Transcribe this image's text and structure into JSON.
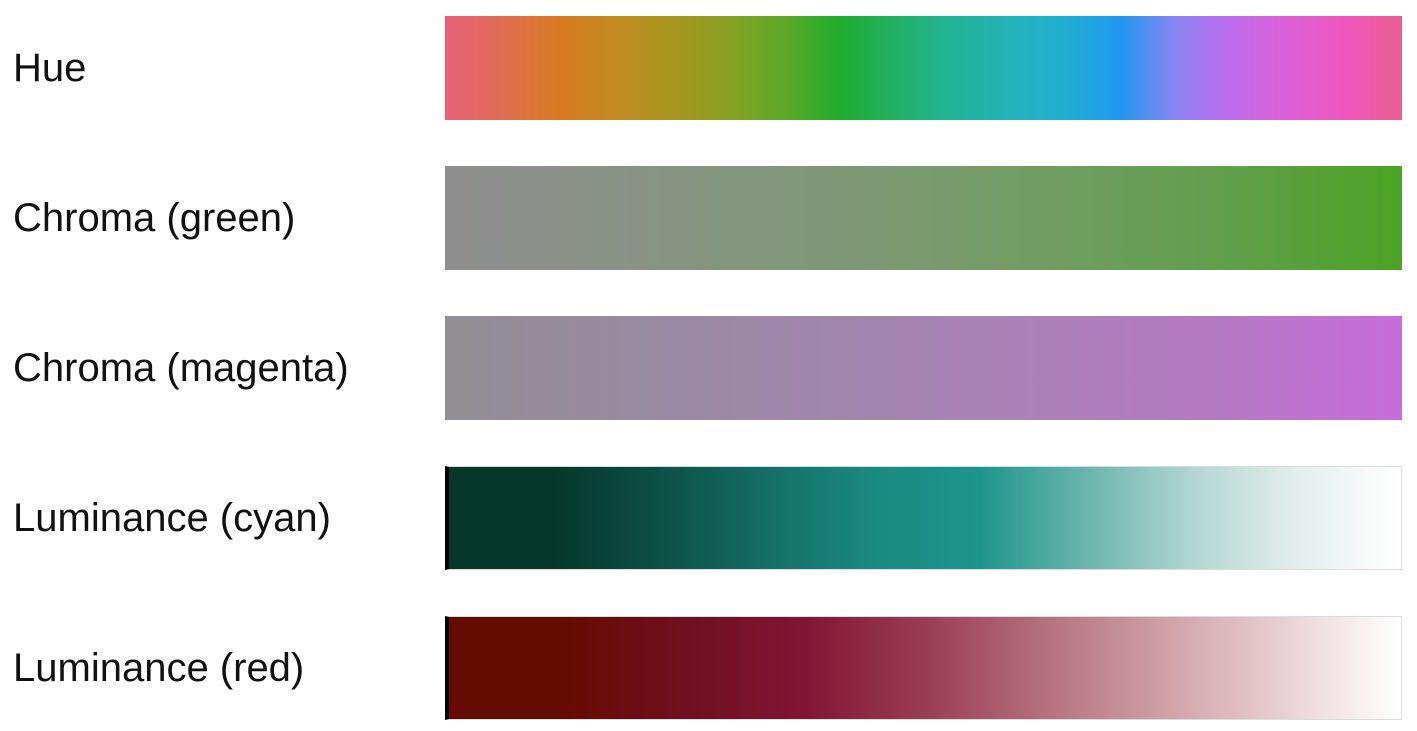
{
  "rows": [
    {
      "label": "Hue",
      "name": "hue",
      "stops": [
        "#e8617a",
        "#e06d55",
        "#d97a22",
        "#c38a20",
        "#a8961f",
        "#8aa022",
        "#5fa828",
        "#20ad2c",
        "#22b065",
        "#21b495",
        "#22b2b8",
        "#20aed0",
        "#2098f0",
        "#8b84f3",
        "#c06ded",
        "#dc5fd6",
        "#ee56bd",
        "#ea5f8d"
      ],
      "bordered": false
    },
    {
      "label": "Chroma (green)",
      "name": "chroma-green",
      "stops": [
        "#8e8e8e",
        "#8a9287",
        "#83977c",
        "#7a9a70",
        "#6e9d5e",
        "#5f9f48",
        "#4ca324"
      ],
      "bordered": false
    },
    {
      "label": "Chroma (magenta)",
      "name": "chroma-magenta",
      "stops": [
        "#908e92",
        "#988aa0",
        "#a186ad",
        "#ab82b7",
        "#b57ac3",
        "#c86cdc"
      ],
      "bordered": false
    },
    {
      "label": "Luminance (cyan)",
      "name": "luminance-cyan",
      "stops": [
        "#05382a",
        "#05382a",
        "#0d5046",
        "#146e66",
        "#1a8a80",
        "#1c948a",
        "#68b4ac",
        "#b0d5d0",
        "#e2eeec",
        "#ffffff"
      ],
      "bordered": true
    },
    {
      "label": "Luminance (red)",
      "name": "luminance-red",
      "stops": [
        "#650c02",
        "#650c02",
        "#6f1020",
        "#801635",
        "#9a3c55",
        "#b4707d",
        "#cfa0a6",
        "#e8d0d3",
        "#ffffff"
      ],
      "bordered": true
    }
  ]
}
